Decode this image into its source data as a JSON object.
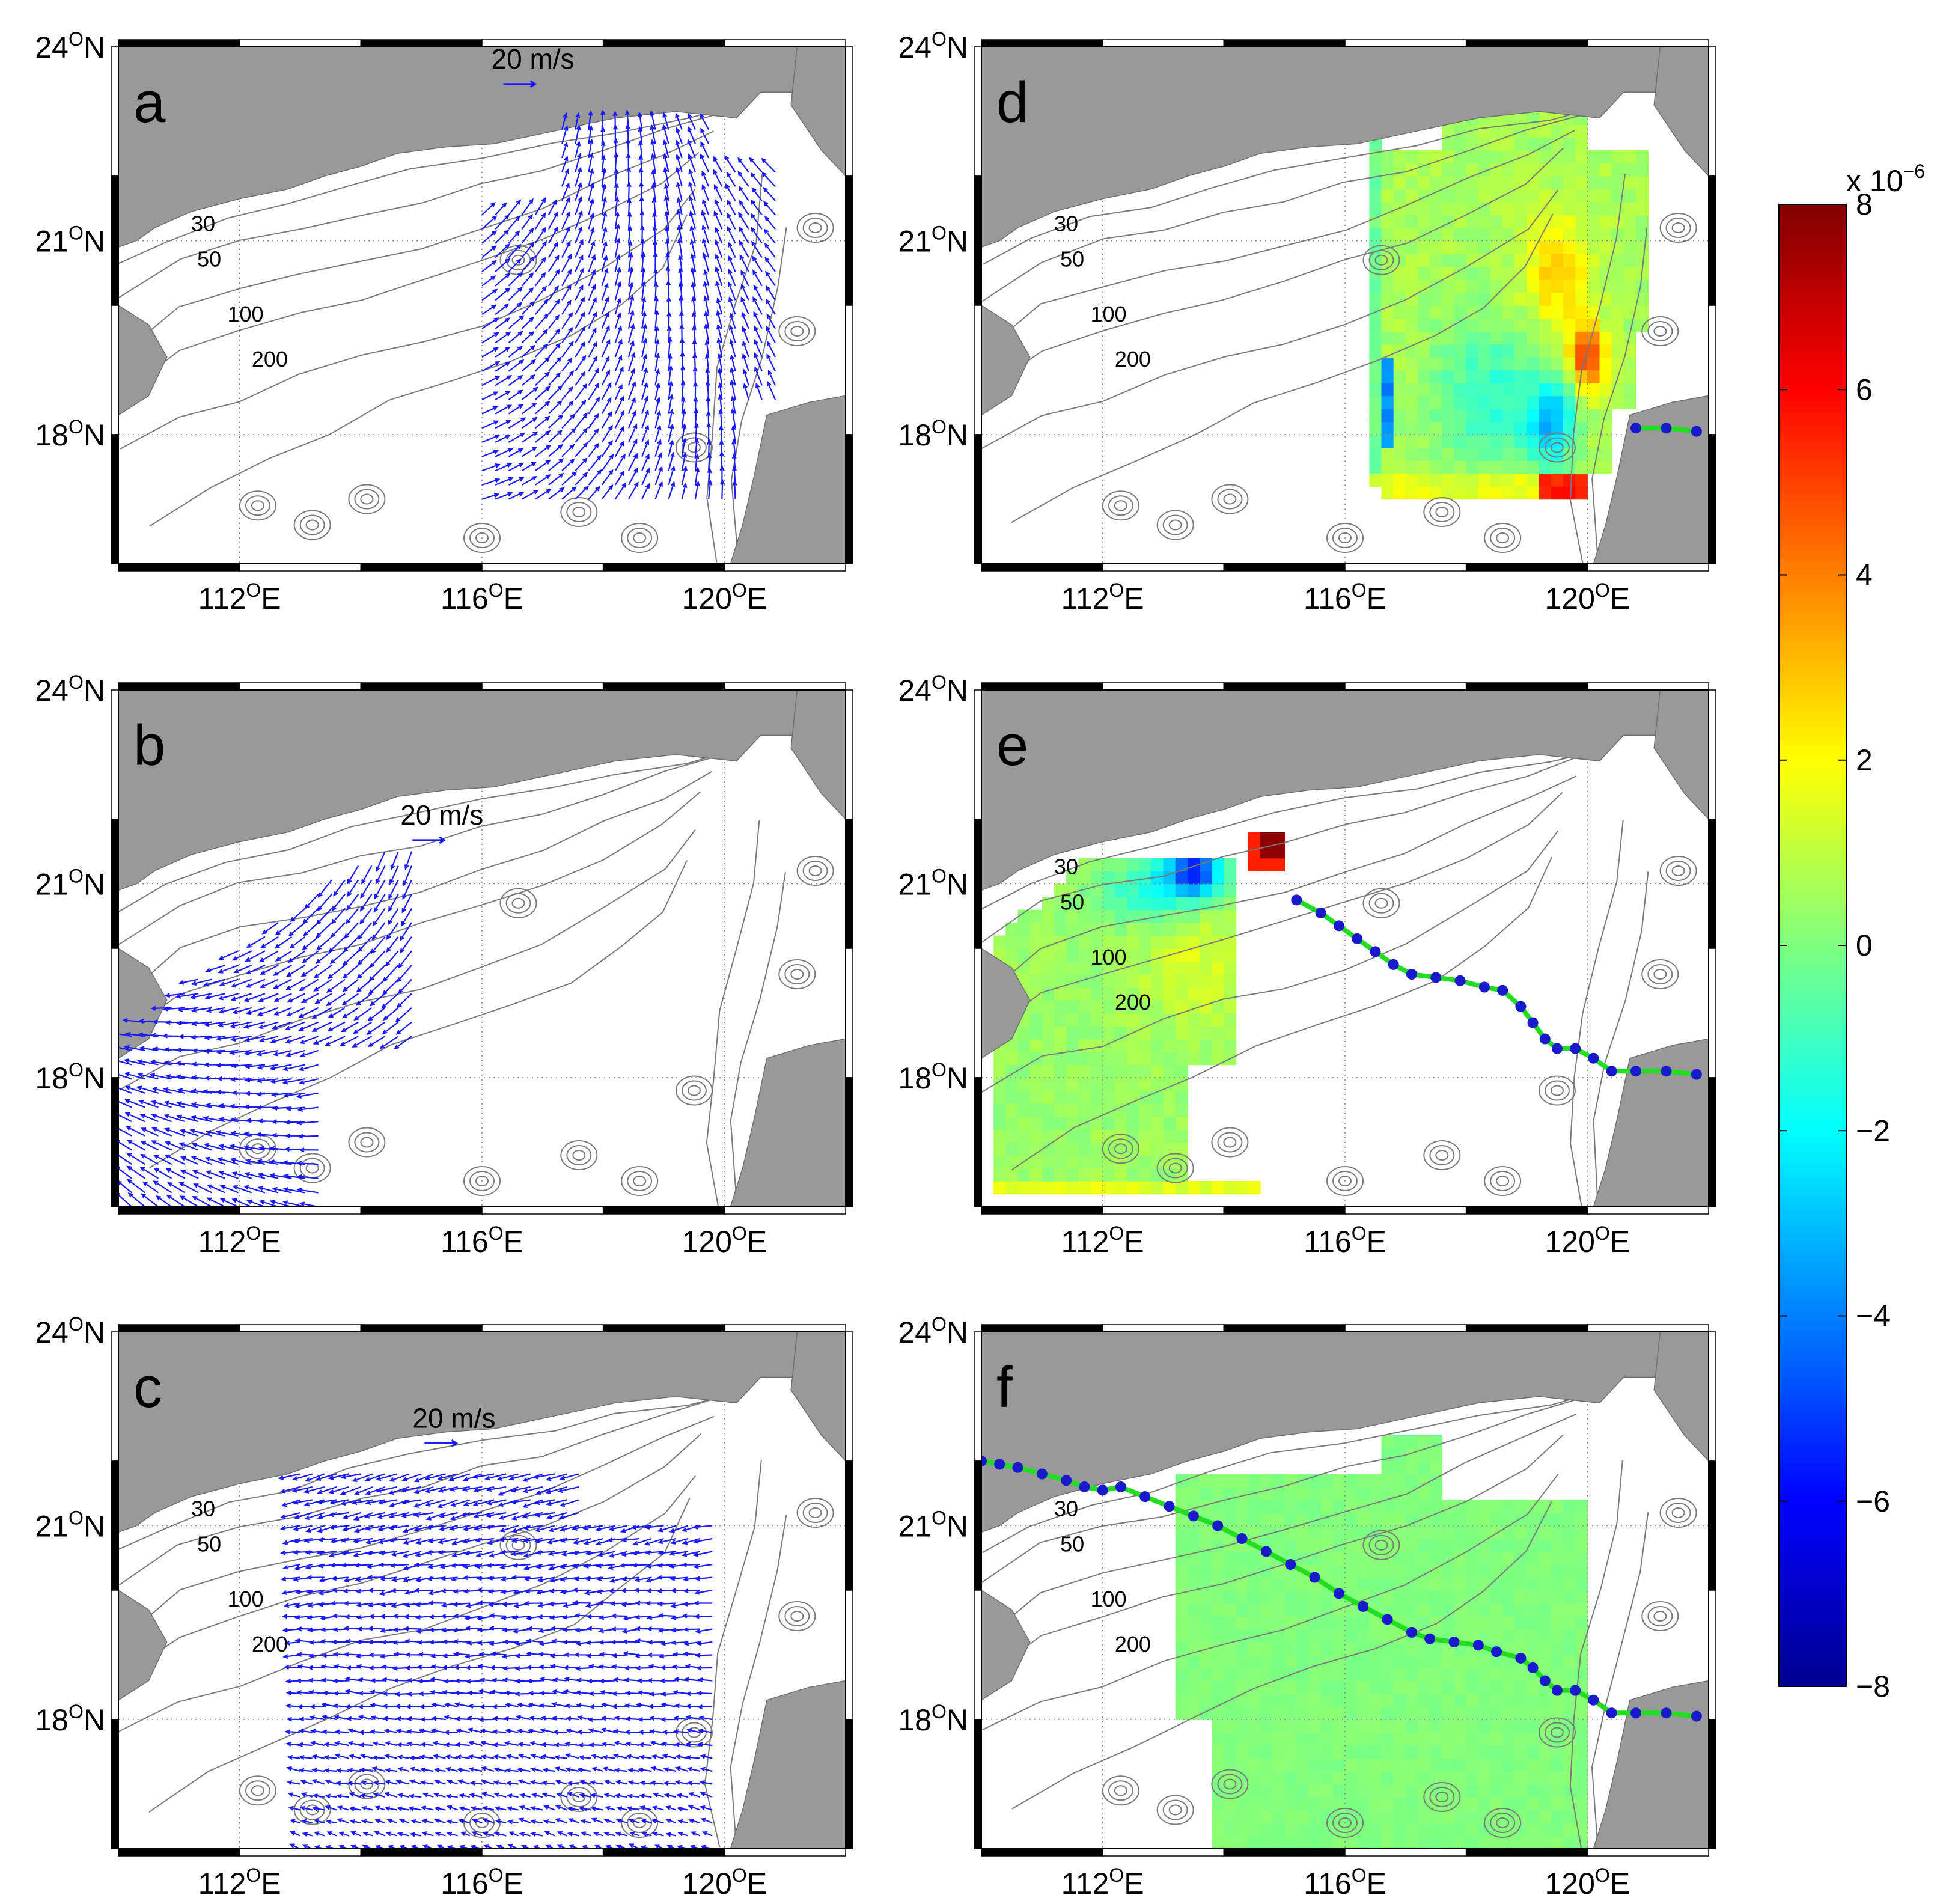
{
  "figure": {
    "lat_ticks": [
      "24",
      "21",
      "18"
    ],
    "lat_hemisphere": "N",
    "lon_ticks": [
      "112",
      "116",
      "120"
    ],
    "lon_hemisphere": "E",
    "degree_symbol": "O",
    "lon_range": [
      110,
      122
    ],
    "lat_range": [
      16,
      24
    ],
    "land_color": "#999999",
    "vector_color": "#1a1aff",
    "track_line_color": "#22dd22",
    "track_point_color": "#1a1acc",
    "contour_color": "#7a7a7a",
    "gridline_style": "dotted"
  },
  "panels": [
    {
      "letter": "a",
      "type": "vectors",
      "scale_label": "20 m/s",
      "contour_labels": [
        "30",
        "50",
        "100",
        "200"
      ],
      "vector_region": {
        "lon": [
          116.0,
          121.0
        ],
        "lat": [
          17.0,
          22.9
        ]
      },
      "mean_direction": "southeast"
    },
    {
      "letter": "b",
      "type": "vectors",
      "scale_label": "20 m/s",
      "contour_labels": [],
      "vector_region": {
        "lon": [
          110.0,
          115.0
        ],
        "lat": [
          16.0,
          21.7
        ]
      },
      "mean_direction": "west"
    },
    {
      "letter": "c",
      "type": "vectors",
      "scale_label": "20 m/s",
      "contour_labels": [
        "30",
        "50",
        "100",
        "200"
      ],
      "vector_region": {
        "lon": [
          113.0,
          120.0
        ],
        "lat": [
          16.0,
          22.0
        ]
      },
      "mean_direction": "west"
    },
    {
      "letter": "d",
      "type": "field",
      "contour_labels": [
        "30",
        "50",
        "100",
        "200"
      ],
      "track": [
        [
          120.8,
          18.1
        ],
        [
          121.3,
          18.1
        ],
        [
          121.8,
          18.05
        ]
      ]
    },
    {
      "letter": "e",
      "type": "field",
      "contour_labels": [
        "30",
        "50",
        "100",
        "200"
      ],
      "track": [
        [
          115.2,
          20.75
        ],
        [
          115.6,
          20.55
        ],
        [
          115.9,
          20.35
        ],
        [
          116.2,
          20.15
        ],
        [
          116.5,
          19.95
        ],
        [
          116.8,
          19.75
        ],
        [
          117.1,
          19.6
        ],
        [
          117.5,
          19.55
        ],
        [
          117.9,
          19.5
        ],
        [
          118.3,
          19.4
        ],
        [
          118.6,
          19.35
        ],
        [
          118.9,
          19.1
        ],
        [
          119.1,
          18.85
        ],
        [
          119.3,
          18.6
        ],
        [
          119.5,
          18.45
        ],
        [
          119.8,
          18.45
        ],
        [
          120.1,
          18.3
        ],
        [
          120.4,
          18.1
        ],
        [
          120.8,
          18.1
        ],
        [
          121.3,
          18.1
        ],
        [
          121.8,
          18.05
        ]
      ]
    },
    {
      "letter": "f",
      "type": "field",
      "contour_labels": [
        "30",
        "50",
        "100",
        "200"
      ],
      "track": [
        [
          110.0,
          22.0
        ],
        [
          110.3,
          21.95
        ],
        [
          110.6,
          21.9
        ],
        [
          111.0,
          21.8
        ],
        [
          111.4,
          21.7
        ],
        [
          111.7,
          21.6
        ],
        [
          112.0,
          21.55
        ],
        [
          112.3,
          21.6
        ],
        [
          112.7,
          21.45
        ],
        [
          113.1,
          21.3
        ],
        [
          113.5,
          21.15
        ],
        [
          113.9,
          21.0
        ],
        [
          114.3,
          20.8
        ],
        [
          114.7,
          20.6
        ],
        [
          115.1,
          20.4
        ],
        [
          115.5,
          20.2
        ],
        [
          115.9,
          19.95
        ],
        [
          116.3,
          19.75
        ],
        [
          116.7,
          19.55
        ],
        [
          117.1,
          19.35
        ],
        [
          117.4,
          19.25
        ],
        [
          117.8,
          19.2
        ],
        [
          118.2,
          19.15
        ],
        [
          118.5,
          19.05
        ],
        [
          118.9,
          18.95
        ],
        [
          119.1,
          18.8
        ],
        [
          119.3,
          18.6
        ],
        [
          119.5,
          18.45
        ],
        [
          119.8,
          18.45
        ],
        [
          120.1,
          18.3
        ],
        [
          120.4,
          18.1
        ],
        [
          120.8,
          18.1
        ],
        [
          121.3,
          18.1
        ],
        [
          121.8,
          18.05
        ]
      ]
    }
  ],
  "colorbar": {
    "multiplier_base": "x 10",
    "multiplier_exponent": "−6",
    "ticks": [
      "8",
      "6",
      "4",
      "2",
      "0",
      "−2",
      "−4",
      "−6",
      "−8"
    ],
    "tick_values": [
      8,
      6,
      4,
      2,
      0,
      -2,
      -4,
      -6,
      -8
    ],
    "range": [
      -8,
      8
    ],
    "colormap": "jet",
    "colormap_stops": [
      "#00008f",
      "#0000ff",
      "#0080ff",
      "#00ffff",
      "#80ff80",
      "#ffff00",
      "#ff8000",
      "#ff0000",
      "#800000"
    ]
  }
}
